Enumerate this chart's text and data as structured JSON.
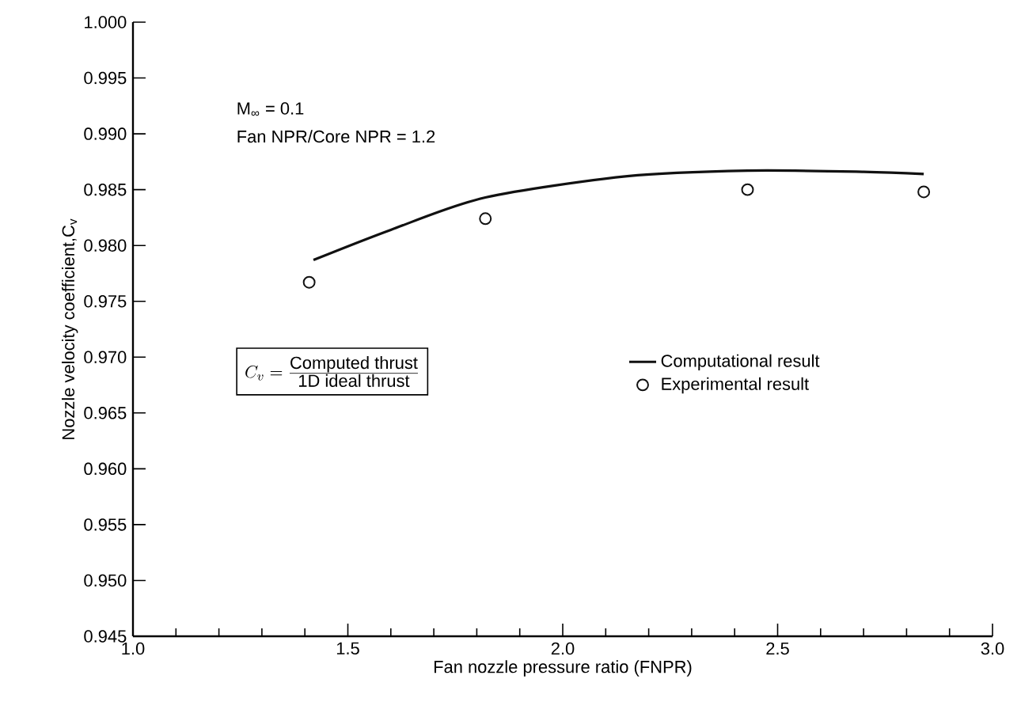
{
  "chart_data": {
    "type": "line",
    "xlabel": "Fan nozzle pressure ratio (FNPR)",
    "ylabel": "Nozzle velocity coefficient,C$_{v}$",
    "annotations": [
      "M$_{∞}$ = 0.1",
      "Fan NPR/Core NPR = 1.2",
      "C_v = \\frac{\\mbox{Computed thrust}}{\\mbox{1D ideal thrust}}"
    ],
    "series": [
      {
        "name": "Computational result",
        "color": "#111111",
        "marker": "none",
        "line_style": "solid",
        "x": [
          1.42,
          1.6,
          1.82,
          2.15,
          2.43,
          2.7,
          2.84
        ],
        "values": [
          0.9787,
          0.9814,
          0.9843,
          0.9862,
          0.9867,
          0.9866,
          0.9864
        ]
      },
      {
        "name": "Experimental result",
        "type": "scatter",
        "color": "#111111",
        "marker": "circle",
        "x": [
          1.41,
          1.82,
          2.43,
          2.84
        ],
        "values": [
          0.9767,
          0.9824,
          0.985,
          0.9848
        ]
      }
    ],
    "xlim": [
      1.0,
      3.0
    ],
    "ylim": [
      0.945,
      1.0
    ],
    "xticks": [
      {
        "value": 1.0,
        "label": "1.0"
      },
      {
        "value": 1.1,
        "label": null
      },
      {
        "value": 1.2,
        "label": null
      },
      {
        "value": 1.3,
        "label": null
      },
      {
        "value": 1.4,
        "label": null
      },
      {
        "value": 1.5,
        "label": "1.5"
      },
      {
        "value": 1.6,
        "label": null
      },
      {
        "value": 1.7,
        "label": null
      },
      {
        "value": 1.8,
        "label": null
      },
      {
        "value": 1.9,
        "label": null
      },
      {
        "value": 2.0,
        "label": "2.0"
      },
      {
        "value": 2.1,
        "label": null
      },
      {
        "value": 2.2,
        "label": null
      },
      {
        "value": 2.3,
        "label": null
      },
      {
        "value": 2.4,
        "label": null
      },
      {
        "value": 2.5,
        "label": "2.5"
      },
      {
        "value": 2.6,
        "label": null
      },
      {
        "value": 2.7,
        "label": null
      },
      {
        "value": 2.8,
        "label": null
      },
      {
        "value": 2.9,
        "label": null
      },
      {
        "value": 3.0,
        "label": "3.0"
      }
    ],
    "yticks": [
      {
        "value": 0.945,
        "label": "0.945"
      },
      {
        "value": 0.95,
        "label": "0.950"
      },
      {
        "value": 0.955,
        "label": "0.955"
      },
      {
        "value": 0.96,
        "label": "0.960"
      },
      {
        "value": 0.965,
        "label": "0.965"
      },
      {
        "value": 0.97,
        "label": "0.970"
      },
      {
        "value": 0.975,
        "label": "0.975"
      },
      {
        "value": 0.98,
        "label": "0.980"
      },
      {
        "value": 0.985,
        "label": "0.985"
      },
      {
        "value": 0.99,
        "label": "0.990"
      },
      {
        "value": 0.995,
        "label": "0.995"
      },
      {
        "value": 1.0,
        "label": "1.000"
      }
    ],
    "grid": false,
    "legend": "right"
  }
}
